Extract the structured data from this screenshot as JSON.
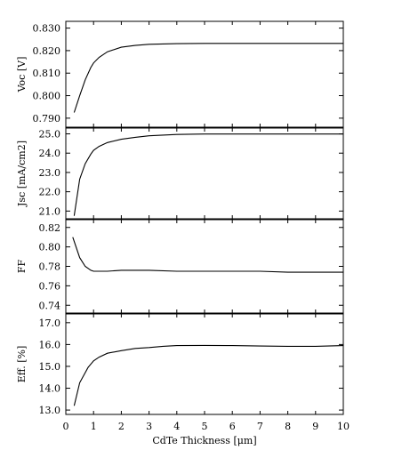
{
  "chart_data": [
    {
      "type": "line",
      "ylabel": "Voc [V]",
      "yticks": [
        "0.790",
        "0.800",
        "0.810",
        "0.820",
        "0.830"
      ],
      "ylim": [
        0.786,
        0.833
      ],
      "x": [
        0.3,
        0.5,
        0.7,
        0.9,
        1.0,
        1.2,
        1.5,
        2.0,
        2.5,
        3.0,
        4.0,
        5.0,
        6.0,
        7.0,
        8.0,
        9.0,
        10.0
      ],
      "y": [
        0.7925,
        0.8,
        0.807,
        0.8125,
        0.8145,
        0.817,
        0.8195,
        0.8215,
        0.8223,
        0.8228,
        0.8231,
        0.8232,
        0.8232,
        0.8232,
        0.8232,
        0.8232,
        0.8232
      ]
    },
    {
      "type": "line",
      "ylabel": "Jsc [mA/cm2]",
      "yticks": [
        "21.0",
        "22.0",
        "23.0",
        "24.0",
        "25.0"
      ],
      "ylim": [
        20.6,
        25.3
      ],
      "x": [
        0.3,
        0.5,
        0.7,
        0.9,
        1.0,
        1.2,
        1.5,
        2.0,
        2.5,
        3.0,
        4.0,
        5.0,
        6.0,
        7.0,
        8.0,
        9.0,
        10.0
      ],
      "y": [
        20.75,
        22.65,
        23.45,
        23.95,
        24.15,
        24.35,
        24.55,
        24.72,
        24.82,
        24.9,
        24.97,
        24.99,
        24.99,
        24.99,
        24.99,
        24.99,
        24.99
      ]
    },
    {
      "type": "line",
      "ylabel": "FF",
      "yticks": [
        "0.74",
        "0.76",
        "0.78",
        "0.80",
        "0.82"
      ],
      "ylim": [
        0.732,
        0.828
      ],
      "x": [
        0.25,
        0.5,
        0.7,
        0.9,
        1.0,
        1.2,
        1.5,
        2.0,
        3.0,
        4.0,
        5.0,
        6.0,
        7.0,
        8.0,
        9.0,
        10.0
      ],
      "y": [
        0.81,
        0.789,
        0.78,
        0.776,
        0.775,
        0.775,
        0.775,
        0.776,
        0.776,
        0.775,
        0.775,
        0.775,
        0.775,
        0.774,
        0.774,
        0.774
      ]
    },
    {
      "type": "line",
      "ylabel": "Eff. [%]",
      "yticks": [
        "13.0",
        "14.0",
        "15.0",
        "16.0",
        "17.0"
      ],
      "ylim": [
        12.8,
        17.4
      ],
      "x": [
        0.3,
        0.5,
        0.8,
        1.0,
        1.2,
        1.5,
        2.0,
        2.5,
        3.0,
        3.5,
        4.0,
        5.0,
        6.0,
        7.0,
        8.0,
        9.0,
        10.0
      ],
      "y": [
        13.2,
        14.25,
        14.95,
        15.25,
        15.42,
        15.6,
        15.72,
        15.82,
        15.86,
        15.92,
        15.95,
        15.96,
        15.95,
        15.93,
        15.92,
        15.92,
        15.95
      ]
    }
  ],
  "x_axis": {
    "label": "CdTe Thickness [μm]",
    "ticks": [
      "0",
      "1",
      "2",
      "3",
      "4",
      "5",
      "6",
      "7",
      "8",
      "9",
      "10"
    ],
    "xlim": [
      0,
      10
    ]
  }
}
